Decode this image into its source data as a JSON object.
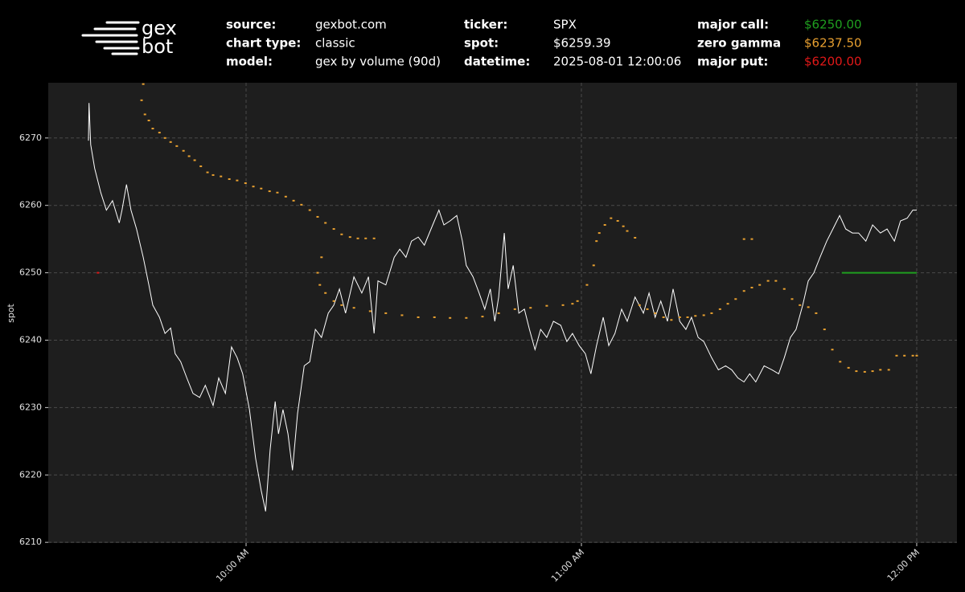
{
  "header": {
    "logo": [
      "gex",
      "bot"
    ],
    "fields": [
      {
        "label": "source:",
        "value": "gexbot.com"
      },
      {
        "label": "chart type:",
        "value": "classic"
      },
      {
        "label": "model:",
        "value": "gex by volume (90d)"
      },
      {
        "label": "ticker:",
        "value": "SPX"
      },
      {
        "label": "spot:",
        "value": "$6259.39"
      },
      {
        "label": "datetime:",
        "value": "2025-08-01 12:00:06"
      },
      {
        "label": "major call:",
        "value": "$6250.00",
        "color": "#1f9e1f"
      },
      {
        "label": "zero gamma",
        "value": "$6237.50",
        "color": "#e8a030"
      },
      {
        "label": "major put:",
        "value": "$6200.00",
        "color": "#e01818"
      }
    ]
  },
  "chart_data": {
    "type": "line",
    "y_label": "spot",
    "xlim": [
      564.6,
      727.2
    ],
    "ylim": [
      6209.9,
      6278.2
    ],
    "xticks": [
      {
        "value": 600,
        "label": "10:00 AM"
      },
      {
        "value": 660,
        "label": "11:00 AM"
      },
      {
        "value": 720,
        "label": "12:00 PM"
      }
    ],
    "yticks": [
      6210,
      6220,
      6230,
      6240,
      6250,
      6260,
      6270
    ],
    "grid": true,
    "series": [
      {
        "style": "line",
        "color": "#ffffff",
        "x": [
          571.8,
          571.9,
          572.2,
          572.9,
          574.0,
          575.0,
          576.1,
          577.3,
          577.8,
          578.6,
          579.4,
          580.4,
          581.6,
          582.6,
          583.3,
          584.5,
          585.5,
          586.5,
          587.3,
          588.3,
          589.4,
          590.5,
          591.7,
          592.7,
          594.1,
          595.1,
          596.3,
          597.4,
          598.4,
          599.4,
          600.6,
          601.7,
          602.7,
          603.5,
          604.3,
          605.2,
          605.8,
          606.6,
          607.5,
          608.3,
          609.2,
          610.4,
          611.4,
          612.4,
          613.5,
          614.7,
          615.7,
          616.7,
          617.8,
          619.3,
          620.7,
          621.9,
          622.9,
          623.6,
          625.0,
          626.5,
          627.5,
          628.6,
          629.6,
          630.8,
          631.9,
          633.4,
          634.5,
          635.4,
          636.5,
          637.7,
          638.7,
          639.4,
          640.6,
          641.7,
          642.7,
          643.7,
          644.5,
          645.2,
          646.2,
          646.9,
          647.8,
          648.8,
          649.8,
          650.7,
          651.7,
          652.7,
          653.8,
          655.0,
          656.3,
          657.4,
          658.4,
          659.6,
          660.7,
          661.7,
          662.7,
          663.9,
          664.9,
          666.0,
          667.2,
          668.2,
          669.6,
          671.1,
          672.1,
          673.2,
          674.2,
          675.4,
          676.4,
          677.6,
          678.7,
          679.7,
          680.9,
          681.9,
          683.3,
          684.5,
          685.8,
          686.9,
          688.0,
          689.1,
          690.1,
          691.2,
          692.7,
          694.1,
          695.3,
          696.3,
          697.4,
          698.4,
          699.6,
          700.6,
          701.6,
          702.7,
          703.9,
          705.0,
          706.2,
          707.3,
          708.5,
          709.6,
          710.9,
          712.1,
          713.5,
          714.7,
          716.0,
          717.1,
          718.3,
          719.3,
          720.0
        ],
        "values": [
          6269.6,
          6275.2,
          6269.0,
          6265.5,
          6261.9,
          6259.3,
          6260.7,
          6257.4,
          6259.3,
          6263.1,
          6259.3,
          6256.5,
          6252.3,
          6248.2,
          6245.2,
          6243.4,
          6241.0,
          6241.8,
          6238.0,
          6236.8,
          6234.4,
          6232.1,
          6231.5,
          6233.3,
          6230.3,
          6234.4,
          6232.1,
          6239.0,
          6237.4,
          6235.0,
          6229.7,
          6222.5,
          6217.7,
          6214.6,
          6223.7,
          6230.9,
          6226.1,
          6229.7,
          6226.1,
          6220.7,
          6229.1,
          6236.2,
          6236.8,
          6241.6,
          6240.4,
          6244.0,
          6245.2,
          6247.6,
          6244.0,
          6249.4,
          6247.0,
          6249.4,
          6241.0,
          6248.8,
          6248.2,
          6252.3,
          6253.5,
          6252.3,
          6254.7,
          6255.3,
          6254.1,
          6257.1,
          6259.3,
          6257.1,
          6257.7,
          6258.5,
          6254.7,
          6251.1,
          6249.4,
          6247.0,
          6244.6,
          6247.6,
          6242.8,
          6246.4,
          6255.9,
          6247.6,
          6251.1,
          6244.0,
          6244.6,
          6241.6,
          6238.6,
          6241.6,
          6240.4,
          6242.8,
          6242.2,
          6239.8,
          6241.0,
          6239.2,
          6238.0,
          6235.0,
          6239.2,
          6243.4,
          6239.2,
          6241.0,
          6244.6,
          6242.8,
          6246.4,
          6244.0,
          6247.0,
          6243.4,
          6245.8,
          6242.8,
          6247.6,
          6242.8,
          6241.6,
          6243.4,
          6240.4,
          6239.8,
          6237.4,
          6235.6,
          6236.2,
          6235.6,
          6234.4,
          6233.8,
          6235.0,
          6233.8,
          6236.2,
          6235.6,
          6235.0,
          6237.4,
          6240.4,
          6241.6,
          6245.2,
          6248.8,
          6250.0,
          6252.3,
          6254.7,
          6256.5,
          6258.5,
          6256.5,
          6255.9,
          6255.9,
          6254.7,
          6257.1,
          6255.9,
          6256.5,
          6254.7,
          6257.7,
          6258.1,
          6259.3,
          6259.3
        ]
      },
      {
        "style": "dots",
        "color": "#e8a030",
        "x": [
          581.6,
          581.3,
          581.9,
          582.6,
          583.3,
          584.5,
          585.5,
          586.5,
          587.6,
          588.8,
          589.8,
          590.8,
          591.9,
          593.1,
          594.1,
          595.5,
          597.0,
          598.4,
          599.9,
          601.3,
          602.7,
          604.2,
          605.6,
          607.1,
          608.5,
          609.9,
          611.4,
          612.8,
          614.2,
          615.7,
          617.1,
          618.6,
          620.0,
          621.4,
          622.9,
          613.5,
          612.8,
          613.2,
          614.2,
          615.7,
          617.1,
          619.3,
          622.2,
          625.0,
          627.9,
          630.8,
          633.7,
          636.5,
          639.4,
          642.3,
          645.2,
          648.1,
          650.9,
          653.8,
          656.7,
          658.4,
          659.3,
          661.0,
          662.2,
          662.7,
          663.2,
          664.2,
          665.3,
          666.5,
          667.5,
          668.2,
          669.6,
          670.4,
          671.8,
          673.2,
          674.7,
          676.1,
          677.6,
          679.0,
          680.4,
          681.9,
          683.3,
          684.8,
          686.2,
          687.6,
          689.1,
          690.5,
          691.9,
          693.4,
          694.8,
          696.3,
          697.7,
          699.1,
          700.6,
          702.0,
          703.5,
          704.9,
          706.3,
          707.8,
          709.2,
          710.7,
          712.1,
          713.5,
          715.0,
          716.4,
          717.8,
          719.3,
          720.0,
          689.1,
          690.5
        ],
        "values": [
          6278.0,
          6275.6,
          6273.5,
          6272.6,
          6271.4,
          6270.8,
          6270.0,
          6269.4,
          6268.8,
          6268.1,
          6267.3,
          6266.7,
          6265.8,
          6264.9,
          6264.5,
          6264.3,
          6263.9,
          6263.7,
          6263.3,
          6262.8,
          6262.5,
          6262.1,
          6261.9,
          6261.3,
          6260.7,
          6260.1,
          6259.3,
          6258.3,
          6257.4,
          6256.5,
          6255.7,
          6255.3,
          6255.1,
          6255.1,
          6255.1,
          6252.3,
          6250.0,
          6248.2,
          6247.0,
          6245.8,
          6245.2,
          6244.8,
          6244.3,
          6244.0,
          6243.7,
          6243.4,
          6243.4,
          6243.3,
          6243.3,
          6243.5,
          6244.0,
          6244.6,
          6244.8,
          6245.1,
          6245.2,
          6245.4,
          6245.8,
          6248.2,
          6251.1,
          6254.7,
          6255.9,
          6257.1,
          6258.1,
          6257.7,
          6256.9,
          6256.2,
          6255.2,
          6245.2,
          6244.6,
          6244.0,
          6243.4,
          6243.0,
          6243.4,
          6243.4,
          6243.6,
          6243.7,
          6244.0,
          6244.6,
          6245.4,
          6246.1,
          6247.3,
          6247.8,
          6248.2,
          6248.8,
          6248.8,
          6247.6,
          6246.1,
          6245.2,
          6244.9,
          6244.0,
          6241.6,
          6238.6,
          6236.8,
          6235.9,
          6235.4,
          6235.3,
          6235.4,
          6235.6,
          6235.6,
          6237.7,
          6237.7,
          6237.7,
          6237.7,
          6255.0,
          6255.0
        ]
      },
      {
        "style": "line",
        "color": "#1f9e1f",
        "x": [
          706.6,
          720.0
        ],
        "values": [
          6250,
          6250
        ]
      },
      {
        "style": "dots",
        "color": "#e01818",
        "x": [
          573.5
        ],
        "values": [
          6250
        ]
      }
    ]
  }
}
